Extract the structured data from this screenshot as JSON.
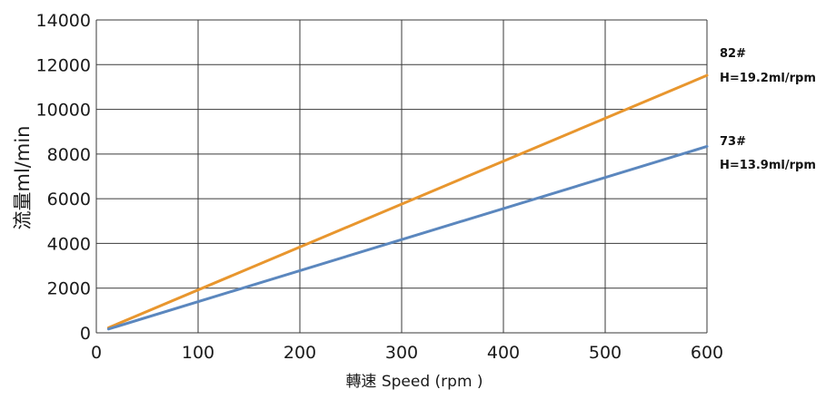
{
  "chart_data": {
    "type": "line",
    "title": "",
    "xlabel": "轉速 Speed (rpm )",
    "ylabel": "流量ml/min",
    "xlim": [
      0,
      600
    ],
    "ylim": [
      0,
      14000
    ],
    "xticks": [
      0,
      100,
      200,
      300,
      400,
      500,
      600
    ],
    "yticks": [
      0,
      2000,
      4000,
      6000,
      8000,
      10000,
      12000,
      14000
    ],
    "xtick_labels": [
      "0",
      "100",
      "200",
      "300",
      "400",
      "500",
      "600"
    ],
    "ytick_labels": [
      "0",
      "2000",
      "4000",
      "6000",
      "8000",
      "10000",
      "12000",
      "14000"
    ],
    "grid": true,
    "series": [
      {
        "name": "82#",
        "annotation": "H=19.2ml/rpm",
        "color": "#E8962E",
        "x": [
          12,
          600
        ],
        "y": [
          230,
          11520
        ]
      },
      {
        "name": "73#",
        "annotation": "H=13.9ml/rpm",
        "color": "#5B87BE",
        "x": [
          12,
          600
        ],
        "y": [
          170,
          8340
        ]
      }
    ]
  }
}
